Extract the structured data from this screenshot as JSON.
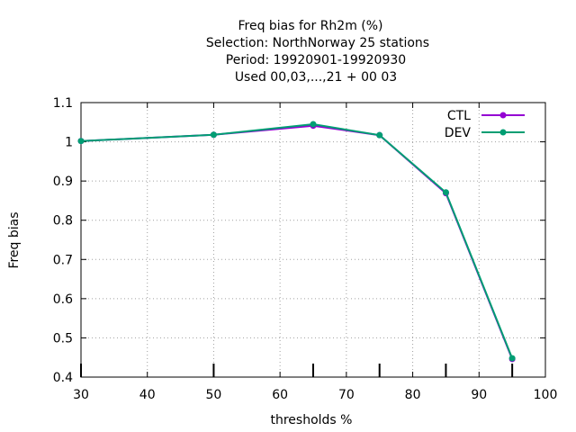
{
  "chart_data": {
    "type": "line",
    "title_lines": [
      "Freq bias  for Rh2m (%)",
      "Selection: NorthNorway      25 stations",
      "Period: 19920901-19920930",
      "Used  00,03,...,21  + 00 03"
    ],
    "xlabel": "thresholds %",
    "ylabel": "Freq bias",
    "xlim": [
      30,
      100
    ],
    "ylim": [
      0.4,
      1.1
    ],
    "xticks": [
      30,
      40,
      50,
      60,
      70,
      80,
      90,
      100
    ],
    "yticks": [
      0.4,
      0.5,
      0.6,
      0.7,
      0.8,
      0.9,
      1,
      1.1
    ],
    "ytick_labels": [
      "0.4",
      "0.5",
      "0.6",
      "0.7",
      "0.8",
      "0.9",
      "1",
      "1.1"
    ],
    "x": [
      30,
      50,
      65,
      75,
      85,
      95
    ],
    "grid": true,
    "legend_position": "top-right",
    "series": [
      {
        "name": "CTL",
        "color": "#9400d3",
        "values": [
          1.002,
          1.018,
          1.041,
          1.017,
          0.869,
          0.446
        ]
      },
      {
        "name": "DEV",
        "color": "#009e73",
        "values": [
          1.002,
          1.018,
          1.045,
          1.017,
          0.871,
          0.448
        ]
      }
    ]
  }
}
